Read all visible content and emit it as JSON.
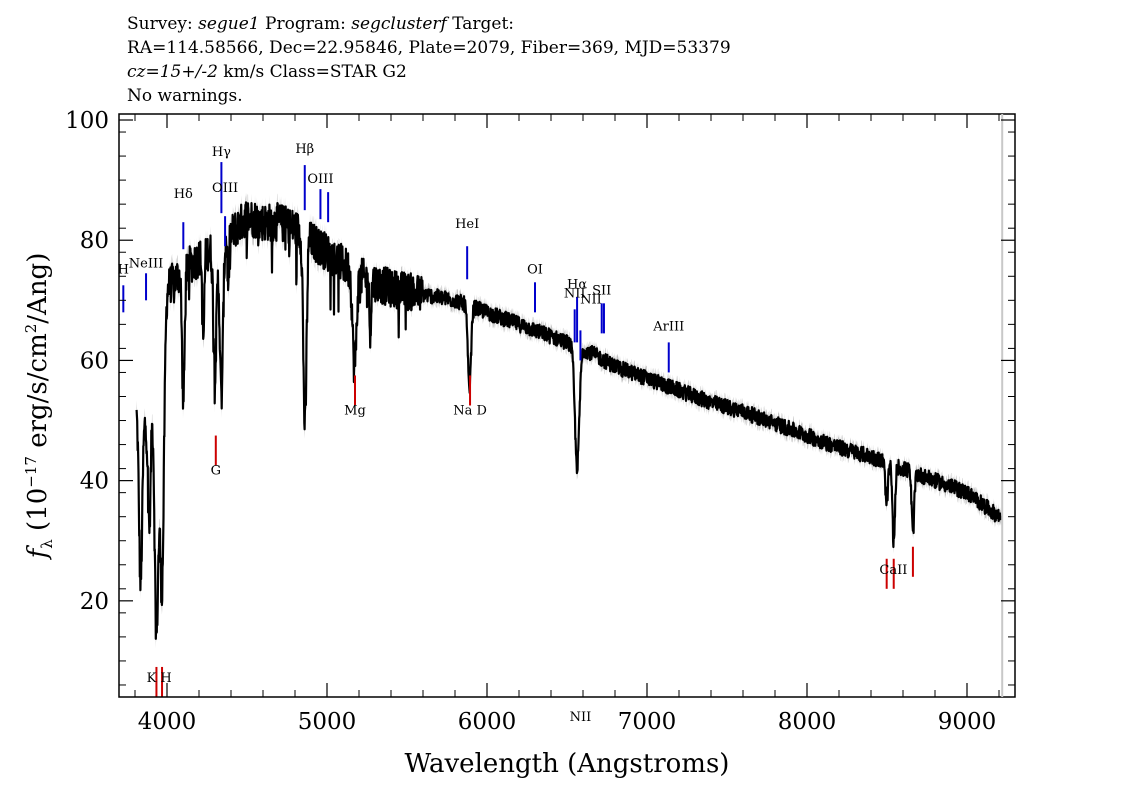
{
  "header": {
    "survey_label": "Survey:",
    "survey": "segue1",
    "program_label": "Program:",
    "program": "segclusterf",
    "target_label": "Target:",
    "line2": "RA=114.58566, Dec=22.95846, Plate=2079, Fiber=369, MJD=53379",
    "cz": "cz=15+/-2",
    "line3_rest": "km/s Class=STAR G2",
    "line4": "No warnings."
  },
  "chart_data": {
    "type": "line",
    "title": "",
    "xlabel": "Wavelength (Angstroms)",
    "ylabel": "f_λ (10^-17 erg/s/cm^2/Ang)",
    "ylabel_parts": {
      "f": "f",
      "lambda": "λ",
      "pre": "(10",
      "exp1": "−17",
      "mid": " erg/s/cm",
      "exp2": "2",
      "post": "/Ang)"
    },
    "xlim": [
      3700,
      9300
    ],
    "ylim": [
      4,
      101
    ],
    "xticks": [
      4000,
      5000,
      6000,
      7000,
      8000,
      9000
    ],
    "xtick_labels": [
      "4000",
      "5000",
      "6000",
      "7000",
      "8000",
      "9000"
    ],
    "yticks": [
      20,
      40,
      60,
      80,
      100
    ],
    "ytick_labels": [
      "20",
      "40",
      "60",
      "80",
      "100"
    ],
    "grid": false,
    "continuum": [
      [
        3810,
        52
      ],
      [
        3860,
        50
      ],
      [
        3900,
        57
      ],
      [
        3950,
        60
      ],
      [
        4000,
        72
      ],
      [
        4100,
        75
      ],
      [
        4200,
        77
      ],
      [
        4300,
        79
      ],
      [
        4400,
        81
      ],
      [
        4500,
        84
      ],
      [
        4600,
        83
      ],
      [
        4700,
        83
      ],
      [
        4800,
        82
      ],
      [
        4900,
        80
      ],
      [
        5000,
        78
      ],
      [
        5200,
        74
      ],
      [
        5400,
        72
      ],
      [
        5600,
        71
      ],
      [
        5800,
        70
      ],
      [
        6000,
        68
      ],
      [
        6200,
        66
      ],
      [
        6400,
        64
      ],
      [
        6600,
        62
      ],
      [
        6800,
        59
      ],
      [
        7000,
        57
      ],
      [
        7200,
        55
      ],
      [
        7400,
        53
      ],
      [
        7600,
        51.5
      ],
      [
        7800,
        49.5
      ],
      [
        8000,
        47.5
      ],
      [
        8200,
        45.5
      ],
      [
        8400,
        44
      ],
      [
        8600,
        42
      ],
      [
        8800,
        40
      ],
      [
        9000,
        38
      ],
      [
        9100,
        36
      ],
      [
        9200,
        34
      ]
    ],
    "absorption_lines": [
      {
        "x": 3835,
        "depth": 28,
        "width": 10
      },
      {
        "x": 3890,
        "depth": 22,
        "width": 10
      },
      {
        "x": 3934,
        "depth": 44,
        "width": 12
      },
      {
        "x": 3969,
        "depth": 42,
        "width": 12
      },
      {
        "x": 4102,
        "depth": 22,
        "width": 8
      },
      {
        "x": 4227,
        "depth": 14,
        "width": 6
      },
      {
        "x": 4300,
        "depth": 20,
        "width": 10
      },
      {
        "x": 4340,
        "depth": 26,
        "width": 10
      },
      {
        "x": 4383,
        "depth": 8,
        "width": 5
      },
      {
        "x": 4862,
        "depth": 32,
        "width": 10
      },
      {
        "x": 5172,
        "depth": 16,
        "width": 12
      },
      {
        "x": 5270,
        "depth": 8,
        "width": 6
      },
      {
        "x": 5890,
        "depth": 14,
        "width": 10
      },
      {
        "x": 6563,
        "depth": 20,
        "width": 14
      },
      {
        "x": 8498,
        "depth": 7,
        "width": 8
      },
      {
        "x": 8542,
        "depth": 13,
        "width": 8
      },
      {
        "x": 8662,
        "depth": 10,
        "width": 8
      }
    ],
    "emission_markers": [
      {
        "label": "H",
        "x": 3727,
        "y_label": 74.5,
        "y_top": 72.5,
        "y_bot": 68
      },
      {
        "label": "NeIII",
        "x": 3869,
        "y_label": 75.5,
        "y_top": 74.5,
        "y_bot": 70
      },
      {
        "label": "Hδ",
        "x": 4102,
        "y_label": 87,
        "y_top": 83,
        "y_bot": 78.5
      },
      {
        "label": "Hγ",
        "x": 4340,
        "y_label": 94,
        "y_top": 93,
        "y_bot": 84.5
      },
      {
        "label": "OIII",
        "x": 4363,
        "y_label": 88,
        "y_top": 84,
        "y_bot": 79
      },
      {
        "label": "Hβ",
        "x": 4861,
        "y_label": 94.5,
        "y_top": 92.5,
        "y_bot": 85
      },
      {
        "label": "OIII",
        "x": 4959,
        "y_label": 89.5,
        "y_top": 88.5,
        "y_bot": 83.5
      },
      {
        "label": "",
        "x": 5007,
        "y_label": 0,
        "y_top": 88,
        "y_bot": 83
      },
      {
        "label": "HeI",
        "x": 5876,
        "y_label": 82,
        "y_top": 79,
        "y_bot": 73.5
      },
      {
        "label": "OI",
        "x": 6300,
        "y_label": 74.5,
        "y_top": 73,
        "y_bot": 68
      },
      {
        "label": "NII",
        "x": 6548,
        "y_label": 70.5,
        "y_top": 68.5,
        "y_bot": 63
      },
      {
        "label": "Hα",
        "x": 6563,
        "y_label": 72,
        "y_top": 70.5,
        "y_bot": 63
      },
      {
        "label": "NII",
        "x": 6584,
        "y_label": 0,
        "y_top": 65,
        "y_bot": 60
      },
      {
        "label": "NII",
        "x": 6650,
        "y_label": 69.5,
        "y_top": 0,
        "y_bot": 0
      },
      {
        "label": "SII",
        "x": 6717,
        "y_label": 71,
        "y_top": 69.5,
        "y_bot": 64.5
      },
      {
        "label": "",
        "x": 6731,
        "y_label": 0,
        "y_top": 69.5,
        "y_bot": 64.5
      },
      {
        "label": "ArIII",
        "x": 7136,
        "y_label": 65,
        "y_top": 63,
        "y_bot": 58
      }
    ],
    "absorption_markers": [
      {
        "label": "K H",
        "x": 3951,
        "y_label": 6.5,
        "lines": [
          3934,
          3969
        ],
        "y_top": 9,
        "y_bot": 4
      },
      {
        "label": "G",
        "x": 4305,
        "y_label": 41,
        "lines": [
          4305
        ],
        "y_top": 47.5,
        "y_bot": 42.5
      },
      {
        "label": "Mg",
        "x": 5175,
        "y_label": 51,
        "lines": [
          5175
        ],
        "y_top": 57.5,
        "y_bot": 52.5
      },
      {
        "label": "Na D",
        "x": 5894,
        "y_label": 51,
        "lines": [
          5894
        ],
        "y_top": 57.5,
        "y_bot": 52.5
      },
      {
        "label": "CaII",
        "x": 8540,
        "y_label": 24.5,
        "lines": [
          8498,
          8542
        ],
        "y_top": 27,
        "y_bot": 22
      },
      {
        "label": "",
        "x": 8662,
        "y_label": 0,
        "lines": [
          8662
        ],
        "y_top": 29,
        "y_bot": 24
      }
    ],
    "colors": {
      "spectrum": "#000000",
      "error": "#bfbfbf",
      "emission": "#0000cc",
      "absorption": "#cc0000",
      "axes": "#000000"
    }
  }
}
